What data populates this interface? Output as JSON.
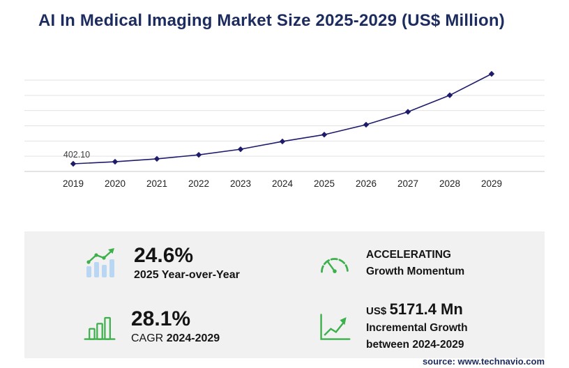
{
  "title": "AI In Medical Imaging Market Size 2025-2029 (US$ Million)",
  "chart_data": {
    "type": "line",
    "title": "AI In Medical Imaging Market Size 2025-2029 (US$ Million)",
    "x": [
      2019,
      2020,
      2021,
      2022,
      2023,
      2024,
      2025,
      2026,
      2027,
      2028,
      2029
    ],
    "series": [
      {
        "name": "Market Size (US$ Million)",
        "values": [
          402.1,
          560.2,
          780.4,
          1087.2,
          1514.6,
          2111.3,
          2630.7,
          3393.6,
          4377.8,
          5647.3,
          7282.7
        ]
      }
    ],
    "values_estimated_except_first": true,
    "first_point_label": "402.10",
    "xlabel": "",
    "ylabel": "",
    "grid": "horizontal",
    "legend": "none"
  },
  "stats": {
    "yoy": {
      "value": "24.6%",
      "label": "2025 Year-over-Year",
      "icon": "bar-chart-trend-icon"
    },
    "momentum": {
      "line1": "ACCELERATING",
      "line2": "Growth Momentum",
      "icon": "speedometer-icon"
    },
    "cagr": {
      "value": "28.1%",
      "prefix": "CAGR",
      "range": "2024-2029",
      "icon": "growth-bars-icon"
    },
    "incremental": {
      "currency": "US$",
      "value": "5171.4 Mn",
      "line1": "Incremental Growth",
      "line2": "between 2024-2029",
      "icon": "growth-arrow-icon"
    }
  },
  "source": "source: www.technavio.com",
  "colors": {
    "navy": "#1d2c5f",
    "line": "#1e1b6b",
    "green": "#3cb04a",
    "bar_blue": "#b9d6f2",
    "grid": "#e2e2e2",
    "axis": "#c9c9c9",
    "panel": "#f1f1f2",
    "text_dark": "#141414"
  }
}
